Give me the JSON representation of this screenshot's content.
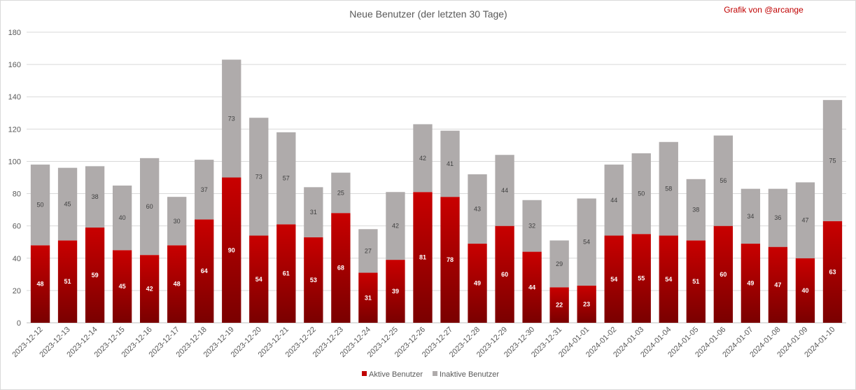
{
  "chart_data": {
    "type": "bar",
    "stacked": true,
    "title": "Neue Benutzer (der letzten 30 Tage)",
    "credit": "Grafik von @arcange",
    "categories": [
      "2023-12-12",
      "2023-12-13",
      "2023-12-14",
      "2023-12-15",
      "2023-12-16",
      "2023-12-17",
      "2023-12-18",
      "2023-12-19",
      "2023-12-20",
      "2023-12-21",
      "2023-12-22",
      "2023-12-23",
      "2023-12-24",
      "2023-12-25",
      "2023-12-26",
      "2023-12-27",
      "2023-12-28",
      "2023-12-29",
      "2023-12-30",
      "2023-12-31",
      "2024-01-01",
      "2024-01-02",
      "2024-01-03",
      "2024-01-04",
      "2024-01-05",
      "2024-01-06",
      "2024-01-07",
      "2024-01-08",
      "2024-01-09",
      "2024-01-10"
    ],
    "series": [
      {
        "name": "Aktive Benutzer",
        "color": "#c00000",
        "values": [
          48,
          51,
          59,
          45,
          42,
          48,
          64,
          90,
          54,
          61,
          53,
          68,
          31,
          39,
          81,
          78,
          49,
          60,
          44,
          22,
          23,
          54,
          55,
          54,
          51,
          60,
          49,
          47,
          40,
          63
        ]
      },
      {
        "name": "Inaktive Benutzer",
        "color": "#afabab",
        "values": [
          50,
          45,
          38,
          40,
          60,
          30,
          37,
          73,
          73,
          57,
          31,
          25,
          27,
          42,
          42,
          41,
          43,
          44,
          32,
          29,
          54,
          44,
          50,
          58,
          38,
          56,
          34,
          36,
          47,
          75
        ]
      }
    ],
    "yticks": [
      0,
      20,
      40,
      60,
      80,
      100,
      120,
      140,
      160,
      180
    ],
    "ylim": [
      0,
      180
    ],
    "grid": true,
    "legend_position": "bottom"
  }
}
